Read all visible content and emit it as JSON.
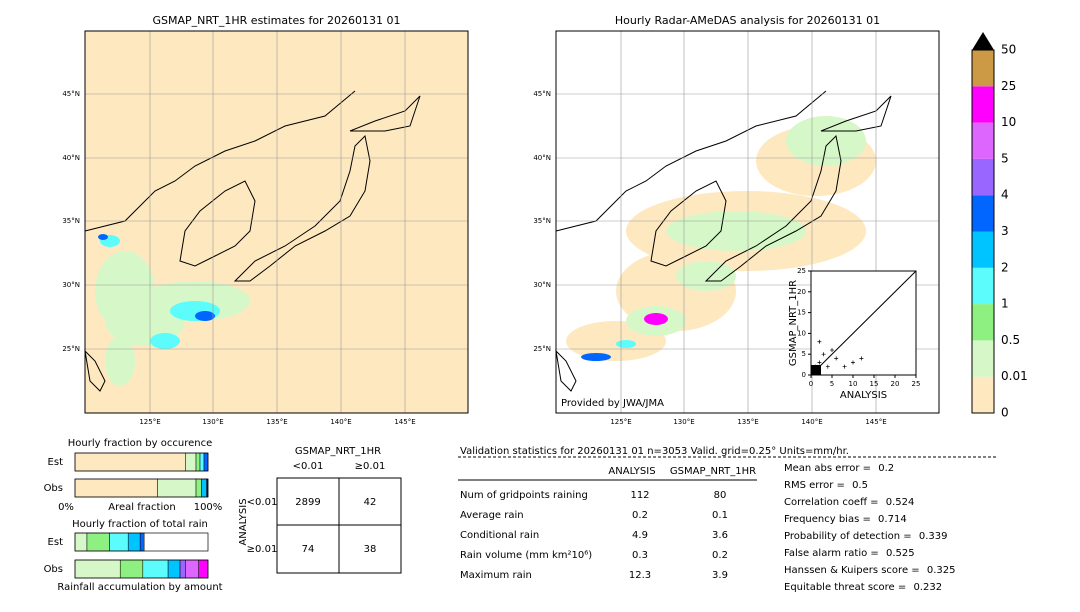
{
  "left_map": {
    "title": "GSMAP_NRT_1HR estimates for 20260131 01",
    "lat_labels": [
      "45°N",
      "40°N",
      "35°N",
      "30°N",
      "25°N"
    ],
    "lon_labels": [
      "125°E",
      "130°E",
      "135°E",
      "140°E",
      "145°E"
    ]
  },
  "right_map": {
    "title": "Hourly Radar-AMeDAS analysis for 20260131 01",
    "lat_labels": [
      "45°N",
      "40°N",
      "35°N",
      "30°N",
      "25°N"
    ],
    "lon_labels": [
      "125°E",
      "130°E",
      "135°E",
      "140°E",
      "145°E"
    ],
    "credit": "Provided by JWA/JMA",
    "inset": {
      "xlabel": "ANALYSIS",
      "ylabel": "GSMAP_NRT_1HR",
      "ticks": [
        0,
        5,
        10,
        15,
        20,
        25
      ]
    }
  },
  "colorbar": {
    "labels": [
      "0",
      "0.01",
      "0.5",
      "1",
      "2",
      "3",
      "4",
      "5",
      "10",
      "25",
      "50"
    ],
    "colors": [
      "#fee8c0",
      "#d6f8c8",
      "#8ef080",
      "#5cfcfc",
      "#00c4ff",
      "#0066ff",
      "#9966ff",
      "#dd66ff",
      "#ff00ff",
      "#cc9944"
    ]
  },
  "occurrence": {
    "title": "Hourly fraction by occurence",
    "rows": [
      "Est",
      "Obs"
    ],
    "axis": [
      "0%",
      "Areal fraction",
      "100%"
    ],
    "segments": [
      {
        "values": [
          83,
          8,
          3,
          3,
          3
        ],
        "colors": [
          "#fee8c0",
          "#d6f8c8",
          "#8ef080",
          "#5cfcfc",
          "#0066ff"
        ]
      },
      {
        "values": [
          62,
          29,
          4,
          4,
          1
        ],
        "colors": [
          "#fee8c0",
          "#d6f8c8",
          "#8ef080",
          "#00c4ff",
          "#000080"
        ]
      }
    ]
  },
  "total_rain": {
    "title": "Hourly fraction of total rain",
    "rows": [
      "Est",
      "Obs"
    ],
    "footer": "Rainfall accumulation by amount",
    "segments": [
      {
        "values": [
          9,
          17,
          14,
          9,
          3
        ],
        "colors": [
          "#d6f8c8",
          "#8ef080",
          "#5cfcfc",
          "#00c4ff",
          "#0066ff"
        ]
      },
      {
        "values": [
          34,
          17,
          19,
          9,
          4,
          10,
          7
        ],
        "colors": [
          "#d6f8c8",
          "#8ef080",
          "#5cfcfc",
          "#00c4ff",
          "#9966ff",
          "#dd66ff",
          "#ff00ff"
        ]
      }
    ]
  },
  "contingency": {
    "title": "GSMAP_NRT_1HR",
    "cols": [
      "<0.01",
      "≥0.01"
    ],
    "row_axis": "ANALYSIS",
    "rows": [
      "<0.01",
      "≥0.01"
    ],
    "cells": [
      [
        2899,
        42
      ],
      [
        74,
        38
      ]
    ]
  },
  "validation": {
    "header": "Validation statistics for 20260131 01  n=3053 Valid. grid=0.25° Units=mm/hr.",
    "columns": [
      "ANALYSIS",
      "GSMAP_NRT_1HR"
    ],
    "rows": [
      [
        "Num of gridpoints raining",
        112,
        80
      ],
      [
        "Average rain",
        0.2,
        0.1
      ],
      [
        "Conditional rain",
        4.9,
        3.6
      ],
      [
        "Rain volume (mm km²10⁶)",
        0.3,
        0.2
      ],
      [
        "Maximum rain",
        12.3,
        3.9
      ]
    ],
    "scores": [
      [
        "Mean abs error = ",
        0.2
      ],
      [
        "RMS error = ",
        0.5
      ],
      [
        "Correlation coeff = ",
        0.524
      ],
      [
        "Frequency bias = ",
        0.714
      ],
      [
        "Probability of detection = ",
        0.339
      ],
      [
        "False alarm ratio = ",
        0.525
      ],
      [
        "Hanssen & Kuipers score = ",
        0.325
      ],
      [
        "Equitable threat score = ",
        0.232
      ]
    ]
  }
}
